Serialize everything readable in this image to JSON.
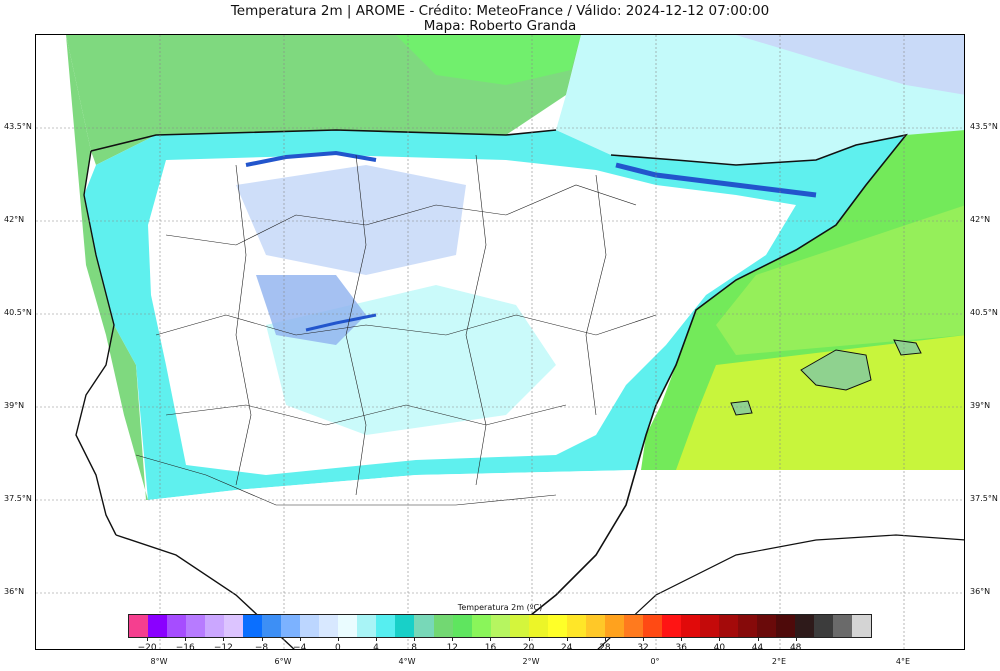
{
  "header": {
    "title": "Temperatura 2m | AROME - Crédito: MeteoFrance / Válido: 2024-12-12 07:00:00",
    "subtitle": "Mapa: Roberto Granda"
  },
  "map": {
    "latitude_labels": [
      "43.5°N",
      "42°N",
      "40.5°N",
      "39°N",
      "37.5°N",
      "36°N"
    ],
    "longitude_labels": [
      "8°W",
      "6°W",
      "4°W",
      "2°W",
      "0°",
      "2°E",
      "4°E"
    ],
    "colors": {
      "land_white": "#ffffff",
      "cyan_light": "#c4fafa",
      "cyan": "#5ff0ee",
      "teal": "#22d6d4",
      "blue_light": "#c9daf8",
      "blue_mid": "#8fb2ef",
      "blue_deep": "#2255cc",
      "sea_green": "#7fd97f",
      "sea_green_light": "#73ea5a",
      "sea_yellow_green": "#c8f53c",
      "grid": "#888888",
      "border": "#111111"
    }
  },
  "colorbar": {
    "title": "Temperatura 2m (ºC)",
    "tick_labels": [
      "−20",
      "−16",
      "−12",
      "−8",
      "−4",
      "0",
      "4",
      "8",
      "12",
      "16",
      "20",
      "24",
      "28",
      "32",
      "36",
      "40",
      "44",
      "48"
    ],
    "swatches": [
      "#f53f8f",
      "#8a00ff",
      "#a64dff",
      "#b77bff",
      "#cba7ff",
      "#dcc4ff",
      "#0a6fff",
      "#3d8ff5",
      "#7cb2ff",
      "#bcd6ff",
      "#d8e8ff",
      "#eafcff",
      "#a8f4f6",
      "#56eef0",
      "#18d0c8",
      "#78d8b8",
      "#72d872",
      "#5fe55f",
      "#8af55a",
      "#b6f560",
      "#d4f53c",
      "#ecf528",
      "#ffff28",
      "#ffe628",
      "#ffc828",
      "#ffa21e",
      "#ff7a1e",
      "#ff4a14",
      "#ff1414",
      "#e10a0a",
      "#c40a0a",
      "#a40a0a",
      "#860a0a",
      "#6a0a0a",
      "#4e0a0a",
      "#2e1a1a",
      "#3c3c3c",
      "#6a6a6a",
      "#d4d4d4"
    ]
  }
}
